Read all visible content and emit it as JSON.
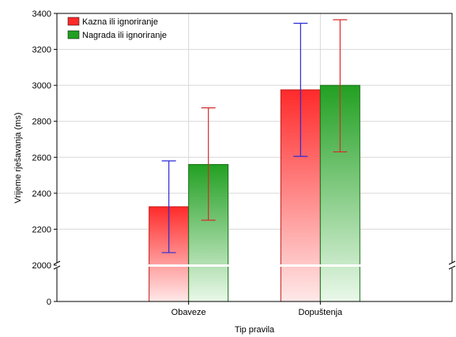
{
  "chart_data": {
    "type": "bar",
    "xlabel": "Tip pravila",
    "ylabel": "Vrijeme rješavanja (ms)",
    "categories": [
      "Obaveze",
      "Dopuštenja"
    ],
    "ylim": [
      2000,
      3400
    ],
    "axis_break": {
      "below": 2000,
      "baseline": 0
    },
    "yticks": [
      "0",
      "2000",
      "2200",
      "2400",
      "2600",
      "2800",
      "3000",
      "3200",
      "3400"
    ],
    "grid": true,
    "legend": "top-left",
    "series": [
      {
        "name": "Kazna ili ignoriranje",
        "color": "#ff2a2a",
        "error_color": "#2a2ad6",
        "values": [
          2325,
          2975
        ],
        "err_low": [
          2070,
          2605
        ],
        "err_high": [
          2580,
          3345
        ]
      },
      {
        "name": "Nagrada ili ignoriranje",
        "color": "#22a022",
        "error_color": "#d62a2a",
        "values": [
          2560,
          3000
        ],
        "err_low": [
          2250,
          2630
        ],
        "err_high": [
          2875,
          3365
        ]
      }
    ]
  }
}
